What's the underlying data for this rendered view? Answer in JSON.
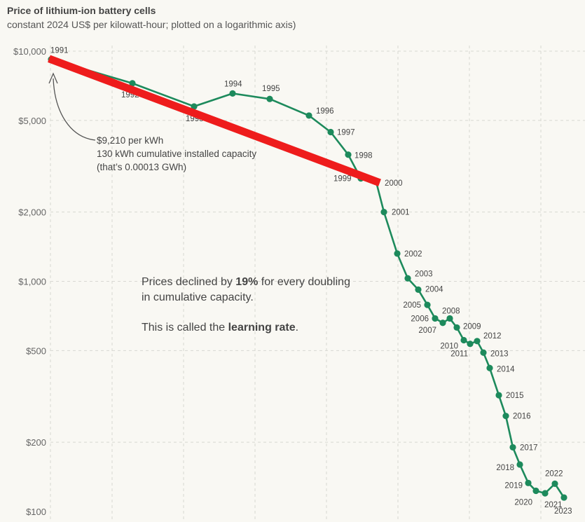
{
  "title": "Price of lithium-ion battery cells",
  "subtitle": "constant 2024 US$ per kilowatt-hour; plotted on a logarithmic axis)",
  "chart_data": {
    "type": "line",
    "yscale": "log",
    "grid": true,
    "ylim": [
      100,
      10000
    ],
    "y_ticks": [
      {
        "value": 10000,
        "label": "$10,000"
      },
      {
        "value": 5000,
        "label": "$5,000"
      },
      {
        "value": 2000,
        "label": "$2,000"
      },
      {
        "value": 1000,
        "label": "$1,000"
      },
      {
        "value": 500,
        "label": "$500"
      },
      {
        "value": 200,
        "label": "$200"
      },
      {
        "value": 100,
        "label": "$100"
      }
    ],
    "series": [
      {
        "color": "#1d8a5c",
        "points": [
          {
            "year": "1991",
            "value": 9210
          },
          {
            "year": "1992",
            "value": 7250
          },
          {
            "year": "1993",
            "value": 5750
          },
          {
            "year": "1994",
            "value": 6550
          },
          {
            "year": "1995",
            "value": 6200
          },
          {
            "year": "1996",
            "value": 5250
          },
          {
            "year": "1997",
            "value": 4450
          },
          {
            "year": "1998",
            "value": 3550
          },
          {
            "year": "1999",
            "value": 2800
          },
          {
            "year": "2000",
            "value": 2700
          },
          {
            "year": "2001",
            "value": 2000
          },
          {
            "year": "2002",
            "value": 1320
          },
          {
            "year": "2003",
            "value": 1030
          },
          {
            "year": "2004",
            "value": 920
          },
          {
            "year": "2005",
            "value": 790
          },
          {
            "year": "2006",
            "value": 690
          },
          {
            "year": "2007",
            "value": 660
          },
          {
            "year": "2008",
            "value": 690
          },
          {
            "year": "2009",
            "value": 630
          },
          {
            "year": "2010",
            "value": 555
          },
          {
            "year": "2011",
            "value": 535
          },
          {
            "year": "2012",
            "value": 550
          },
          {
            "year": "2013",
            "value": 490
          },
          {
            "year": "2014",
            "value": 420
          },
          {
            "year": "2015",
            "value": 320
          },
          {
            "year": "2016",
            "value": 260
          },
          {
            "year": "2017",
            "value": 190
          },
          {
            "year": "2018",
            "value": 160
          },
          {
            "year": "2019",
            "value": 133
          },
          {
            "year": "2020",
            "value": 123
          },
          {
            "year": "2021",
            "value": 120
          },
          {
            "year": "2022",
            "value": 132
          },
          {
            "year": "2023",
            "value": 115
          }
        ]
      }
    ],
    "highlight_line": {
      "from_year": "1991",
      "to_year": "2000",
      "color": "#ee1c1c"
    },
    "note": {
      "lines": [
        "$9,210 per kWh",
        "130 kWh cumulative installed capacity",
        "(that’s 0.00013 GWh)"
      ]
    },
    "annotation": {
      "line1_pre": "Prices declined by ",
      "line1_bold": "19%",
      "line1_post": " for every doubling",
      "line2": "in cumulative capacity.",
      "line3_pre": "This is called the ",
      "line3_bold": "learning rate",
      "line3_post": "."
    }
  }
}
